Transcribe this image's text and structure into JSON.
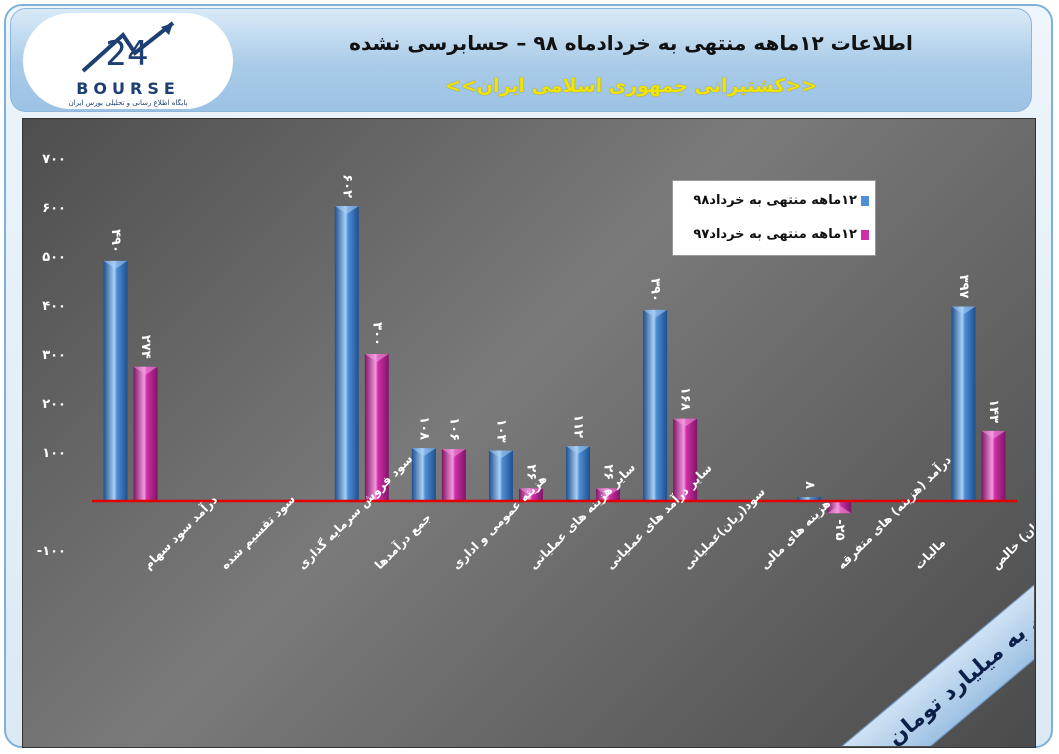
{
  "header": {
    "title": "اطلاعات ۱۲ماهه منتهی به خردادماه ۹۸ – حسابرسی نشده",
    "company": "<<کشتیرانی جمهوری اسلامی ایران>>",
    "logo_text": "BOURSE",
    "logo_number": "24",
    "logo_subtitle": "پایگاه اطلاع رسانی و تحلیلی بورس ایران"
  },
  "unit_label": "ارقام به میلیارد تومان",
  "colors": {
    "series_98": "#4f8fd6",
    "series_97": "#d12fa8",
    "zero_line": "#e00000",
    "text": "#ffffff"
  },
  "chart_data": {
    "type": "bar",
    "categories": [
      "درآمد سود سهام",
      "سود تقسیم شده",
      "سود فروش سرمایه گذاری",
      "جمع درآمدها",
      "هزینه عمومی و اداری",
      "سایر هزینه های عملیاتی",
      "سایر درآمد های عملیاتی",
      "سود(زیان)عملیاتی",
      "هزینه های مالی",
      "درآمد (هزینه) های متفرقه",
      "مالیات",
      "سود(زیان) خالص"
    ],
    "series": [
      {
        "name": "۱۲ماهه منتهی به خرداد۹۸",
        "values": [
          490,
          null,
          null,
          602,
          108,
          103,
          112,
          390,
          null,
          8,
          null,
          397
        ],
        "labels": [
          "۴۹۰",
          "",
          "",
          "۶۰۲",
          "۱۰۸",
          "۱۰۳",
          "۱۱۲",
          "۳۹۰",
          "",
          "۸",
          "",
          "۳۹۷"
        ]
      },
      {
        "name": "۱۲ماهه منتهی به خرداد۹۷",
        "values": [
          274,
          null,
          null,
          300,
          106,
          26,
          26,
          168,
          null,
          -25,
          null,
          143
        ],
        "labels": [
          "۲۷۴",
          "",
          "",
          "۳۰۰",
          "۱۰۶",
          "۲۶",
          "۲۶",
          "۱۶۸",
          "",
          "-۲۵",
          "",
          "۱۴۳"
        ]
      }
    ],
    "ylim": [
      -100,
      700
    ],
    "yticks": [
      -100,
      0,
      100,
      200,
      300,
      400,
      500,
      600,
      700
    ],
    "ytick_labels": [
      "-۱۰۰",
      "",
      "۱۰۰",
      "۲۰۰",
      "۳۰۰",
      "۴۰۰",
      "۵۰۰",
      "۶۰۰",
      "۷۰۰"
    ],
    "grid": false,
    "legend": "top-right"
  }
}
